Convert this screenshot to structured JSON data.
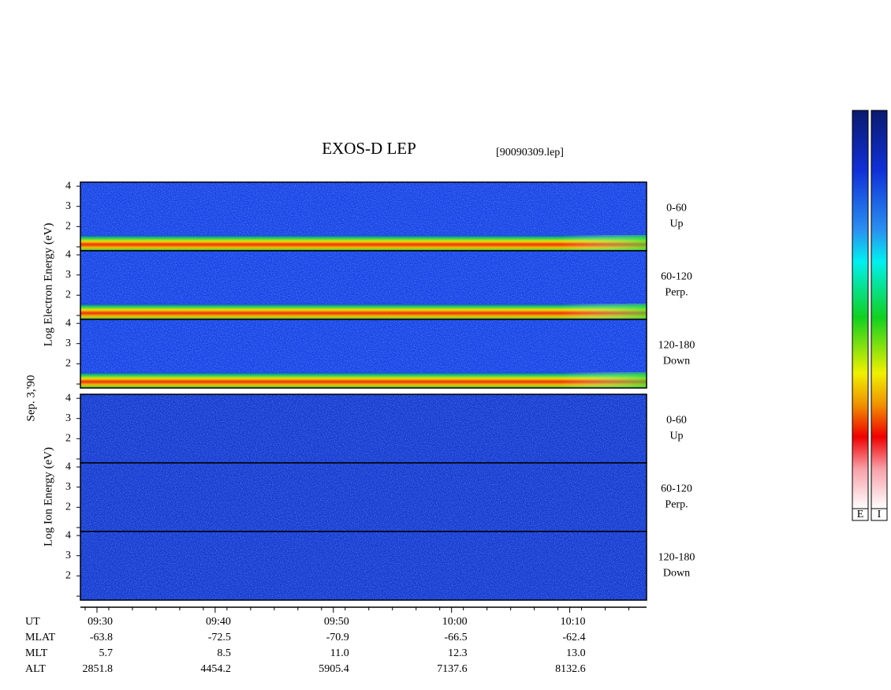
{
  "title": "EXOS-D LEP",
  "file": "[90090309.lep]",
  "date": "Sep. 3,'90",
  "electron_axis_label": "Log Electron Energy (eV)",
  "ion_axis_label": "Log Ion Energy (eV)",
  "panels": [
    {
      "angle": "0-60",
      "direction": "Up"
    },
    {
      "angle": "60-120",
      "direction": "Perp."
    },
    {
      "angle": "120-180",
      "direction": "Down"
    },
    {
      "angle": "0-60",
      "direction": "Up"
    },
    {
      "angle": "60-120",
      "direction": "Perp."
    },
    {
      "angle": "120-180",
      "direction": "Down"
    }
  ],
  "ylim": [
    0.8,
    4.2
  ],
  "yticks": [
    2,
    3,
    4
  ],
  "xlim": [
    568.6,
    616.5
  ],
  "xticks": [
    {
      "value": 570,
      "label": "09:30"
    },
    {
      "value": 580,
      "label": "09:40"
    },
    {
      "value": 590,
      "label": "09:50"
    },
    {
      "value": 600,
      "label": "10:00"
    },
    {
      "value": 610,
      "label": "10:10"
    }
  ],
  "ephemeris": {
    "names": [
      "UT",
      "MLAT",
      "MLT",
      "ALT"
    ],
    "rows": [
      [
        "-63.8",
        "-72.5",
        "-70.9",
        "-66.5",
        "-62.4"
      ],
      [
        "5.7",
        "8.5",
        "11.0",
        "12.3",
        "13.0"
      ],
      [
        "2851.8",
        "4454.2",
        "5905.4",
        "7137.6",
        "8132.6"
      ]
    ]
  },
  "colorbar_labels": [
    "E",
    "I"
  ]
}
